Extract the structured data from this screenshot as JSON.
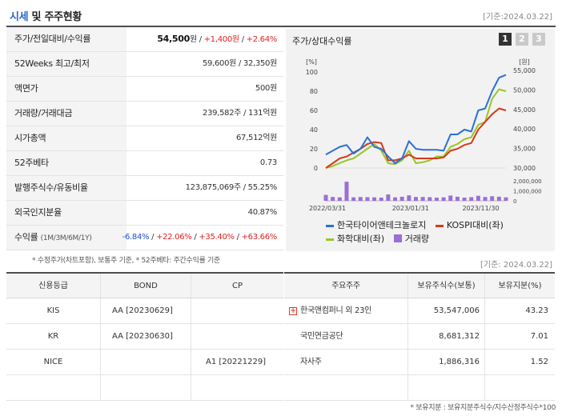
{
  "header": {
    "title_accent": "시세",
    "title_rest": " 및 주주현황",
    "date": "[기준:2024.03.22]"
  },
  "quote": [
    {
      "label": "주가/전일대비/수익률",
      "price": "54,500",
      "unit": "원",
      "sep": " / ",
      "change": "+1,400원",
      "rate": "+2.64%"
    },
    {
      "label": "52Weeks 최고/최저",
      "value": "59,600원 / 32,350원"
    },
    {
      "label": "액면가",
      "value": "500원"
    },
    {
      "label": "거래량/거래대금",
      "value": "239,582주 / 131억원"
    },
    {
      "label": "시가총액",
      "value": "67,512억원"
    },
    {
      "label": "52주베타",
      "value": "0.73"
    },
    {
      "label": "발행주식수/유동비율",
      "value": "123,875,069주 / 55.25%"
    },
    {
      "label": "외국인지분율",
      "value": "40.87%"
    },
    {
      "label": "수익률",
      "label_sub": "(1M/3M/6M/1Y)",
      "r1": "-6.84%",
      "r2": "+22.06%",
      "r3": "+35.40%",
      "r4": "+63.66%"
    }
  ],
  "quote_note": "* 수정주가(차트포함), 보통주 기준, * 52주베타: 주간수익률 기준",
  "chart": {
    "title": "주가/상대수익률",
    "tabs": [
      "1",
      "2",
      "3"
    ],
    "left_unit": "[%]",
    "right_unit": "[원]",
    "legend": [
      {
        "name": "한국타이어앤테크놀로지",
        "color": "#2a6fdb"
      },
      {
        "name": "KOSPI대비(좌)",
        "color": "#d63a1a"
      },
      {
        "name": "화학대비(좌)",
        "color": "#9ac526"
      },
      {
        "name": "거래량",
        "color": "#9b6fd6"
      }
    ]
  },
  "chart_data": {
    "type": "line",
    "x_ticks": [
      "2022/03/31",
      "2023/01/31",
      "2023/11/30"
    ],
    "left_axis": {
      "ticks": [
        0,
        20,
        40,
        60,
        80,
        100
      ],
      "range": [
        -15,
        110
      ]
    },
    "right_axis": {
      "ticks": [
        "30,000",
        "35,000",
        "40,000",
        "45,000",
        "50,000",
        "55,000"
      ],
      "range": [
        27000,
        57500
      ]
    },
    "volume_axis": {
      "ticks": [
        "0",
        "1,000,000",
        "2,000,000"
      ],
      "range": [
        0,
        2200000
      ]
    },
    "series": [
      {
        "name": "한국타이어앤테크놀로지",
        "axis": "left",
        "values": [
          14,
          18,
          22,
          24,
          15,
          20,
          32,
          22,
          20,
          12,
          5,
          10,
          28,
          20,
          19,
          19,
          19,
          18,
          35,
          35,
          40,
          38,
          60,
          62,
          80,
          94,
          97
        ]
      },
      {
        "name": "KOSPI대비(좌)",
        "axis": "left",
        "values": [
          0,
          5,
          10,
          12,
          16,
          20,
          25,
          27,
          26,
          8,
          8,
          10,
          14,
          10,
          10,
          10,
          10,
          11,
          18,
          20,
          24,
          26,
          40,
          48,
          56,
          62,
          60
        ]
      },
      {
        "name": "화학대비(좌)",
        "axis": "left",
        "values": [
          0,
          2,
          5,
          8,
          10,
          15,
          20,
          25,
          18,
          5,
          4,
          8,
          18,
          5,
          6,
          8,
          12,
          12,
          22,
          25,
          30,
          32,
          45,
          48,
          72,
          82,
          80
        ]
      },
      {
        "name": "거래량",
        "axis": "volume",
        "values": [
          650000,
          420000,
          380000,
          2100000,
          380000,
          420000,
          400000,
          380000,
          350000,
          700000,
          380000,
          450000,
          600000,
          420000,
          420000,
          400000,
          350000,
          380000,
          580000,
          450000,
          350000,
          400000,
          550000,
          420000,
          500000,
          450000,
          380000
        ]
      }
    ]
  },
  "date2": "[기준: 2024.03.22]",
  "credit": {
    "headers": [
      "신용등급",
      "BOND",
      "CP"
    ],
    "rows": [
      [
        "KIS",
        "AA  [20230629]",
        ""
      ],
      [
        "KR",
        "AA  [20230630]",
        ""
      ],
      [
        "NICE",
        "",
        "A1  [20221229]"
      ],
      [
        "",
        "",
        ""
      ]
    ]
  },
  "holders": {
    "headers": [
      "주요주주",
      "보유주식수(보통)",
      "보유지분(%)"
    ],
    "rows": [
      [
        "한국앤컴퍼니 외 23인",
        "53,547,006",
        "43.23"
      ],
      [
        "국민연금공단",
        "8,681,312",
        "7.01"
      ],
      [
        "자사주",
        "1,886,316",
        "1.52"
      ],
      [
        "",
        "",
        ""
      ]
    ]
  },
  "holders_note": "* 보유지분 : 보유지분주식수/지수산정주식수*100"
}
